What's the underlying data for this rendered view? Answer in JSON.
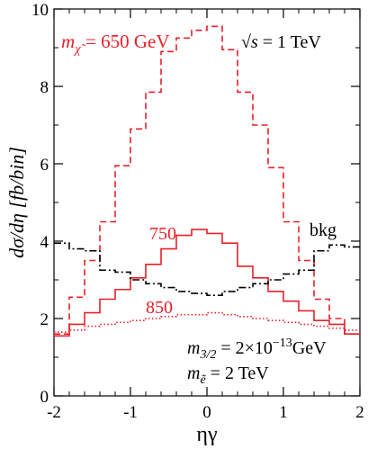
{
  "chart_data": {
    "type": "line",
    "step": true,
    "xlabel": "ηγ",
    "ylabel": "dσ/dη [fb/bin]",
    "xlim": [
      -2,
      2
    ],
    "ylim": [
      0,
      10
    ],
    "xticks": [
      "-2",
      "-1",
      "0",
      "1",
      "2"
    ],
    "yticks": [
      "0",
      "2",
      "4",
      "6",
      "8",
      "10"
    ],
    "grid": false,
    "bin_edges": [
      -2.0,
      -1.8,
      -1.6,
      -1.4,
      -1.2,
      -1.0,
      -0.8,
      -0.6,
      -0.4,
      -0.2,
      0.0,
      0.2,
      0.4,
      0.6,
      0.8,
      1.0,
      1.2,
      1.4,
      1.6,
      1.8,
      2.0
    ],
    "series": [
      {
        "name": "",
        "label": "650",
        "color": "#e8202a",
        "dash": "dashed",
        "values": [
          1.6,
          2.55,
          3.5,
          4.5,
          5.95,
          6.9,
          7.85,
          8.9,
          9.25,
          9.45,
          9.55,
          8.95,
          7.85,
          7.0,
          5.9,
          4.5,
          3.5,
          2.5,
          2.0,
          1.6
        ]
      },
      {
        "name": "",
        "label": "750",
        "color": "#e8202a",
        "dash": "solid",
        "values": [
          1.55,
          1.85,
          2.15,
          2.5,
          2.75,
          3.05,
          3.4,
          3.8,
          4.15,
          4.3,
          4.2,
          3.95,
          3.35,
          3.05,
          2.7,
          2.45,
          2.2,
          1.95,
          1.85,
          1.6
        ]
      },
      {
        "name": "",
        "label": "850",
        "color": "#e8202a",
        "dash": "dotted",
        "values": [
          1.65,
          1.7,
          1.8,
          1.85,
          1.9,
          1.95,
          2.0,
          2.05,
          2.1,
          2.1,
          2.15,
          2.1,
          2.05,
          2.0,
          1.95,
          1.9,
          1.85,
          1.8,
          1.75,
          1.7
        ]
      },
      {
        "name": "",
        "label": "bkg",
        "color": "#000000",
        "dash": "dashdot",
        "values": [
          3.95,
          3.8,
          3.75,
          3.25,
          3.2,
          3.0,
          2.9,
          2.8,
          2.7,
          2.65,
          2.6,
          2.7,
          2.8,
          2.9,
          3.0,
          3.15,
          3.25,
          3.75,
          3.9,
          3.85
        ]
      }
    ],
    "annotations": {
      "m_chi_sym": "m",
      "m_chi_sub": "χ̃",
      "m_chi_value": " = 650 GeV",
      "sqrt_s_root": "√",
      "sqrt_s_var": "s",
      "sqrt_s_value": " = 1 TeV",
      "bkg": "bkg",
      "label_750": "750",
      "label_850": "850",
      "m32_sym": "m",
      "m32_sub": "3/2",
      "m32_value": " = 2×10",
      "m32_exp": "−13",
      "m32_unit": "GeV",
      "me_sym": "m",
      "me_sub": "ẽ",
      "me_value": " = 2 TeV"
    },
    "colors": {
      "signal": "#e8202a",
      "background": "#000000"
    }
  }
}
